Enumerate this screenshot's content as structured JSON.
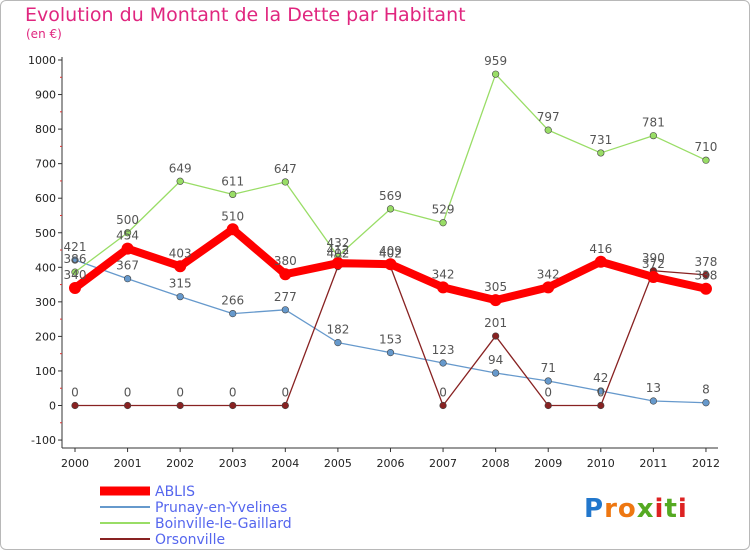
{
  "chart_data": {
    "type": "line",
    "title": "Evolution du Montant de la Dette par Habitant",
    "subtitle": "(en €)",
    "x": [
      "2000",
      "2001",
      "2002",
      "2003",
      "2004",
      "2005",
      "2006",
      "2007",
      "2008",
      "2009",
      "2010",
      "2011",
      "2012"
    ],
    "ylim": [
      -100,
      1000
    ],
    "yticks": [
      -100,
      0,
      100,
      200,
      300,
      400,
      500,
      600,
      700,
      800,
      900,
      1000
    ],
    "grid": false,
    "legend_position": "bottom-left",
    "series": [
      {
        "name": "ABLIS",
        "color": "#ff0000",
        "values": [
          340,
          454,
          403,
          510,
          380,
          412,
          409,
          342,
          305,
          342,
          416,
          372,
          338
        ],
        "labels": [
          "340",
          "454",
          "403",
          "510",
          "380",
          "412",
          "409",
          "342",
          "305",
          "342",
          "416",
          "372",
          "338"
        ]
      },
      {
        "name": "Prunay-en-Yvelines",
        "color": "#6699cc",
        "values": [
          421,
          367,
          315,
          266,
          277,
          182,
          153,
          123,
          94,
          71,
          42,
          13,
          8
        ],
        "labels": [
          "421",
          "367",
          "315",
          "266",
          "277",
          "182",
          "153",
          "123",
          "94",
          "71",
          "42",
          "13",
          "8"
        ]
      },
      {
        "name": "Boinville-le-Gaillard",
        "color": "#99dd66",
        "values": [
          386,
          500,
          649,
          611,
          647,
          432,
          569,
          529,
          959,
          797,
          731,
          781,
          710
        ],
        "labels": [
          "386",
          "500",
          "649",
          "611",
          "647",
          "432",
          "569",
          "529",
          "959",
          "797",
          "731",
          "781",
          "710"
        ]
      },
      {
        "name": "Orsonville",
        "color": "#882222",
        "values": [
          0,
          0,
          0,
          0,
          0,
          402,
          402,
          0,
          201,
          0,
          0,
          390,
          378
        ],
        "labels": [
          "0",
          "0",
          "0",
          "0",
          "0",
          "402",
          "402",
          "0",
          "201",
          "0",
          "0",
          "390",
          "378"
        ]
      }
    ]
  },
  "logo": {
    "text": "Proxiti",
    "colors": [
      "#2277cc",
      "#ee7711",
      "#55aa22",
      "#dd2222"
    ]
  }
}
